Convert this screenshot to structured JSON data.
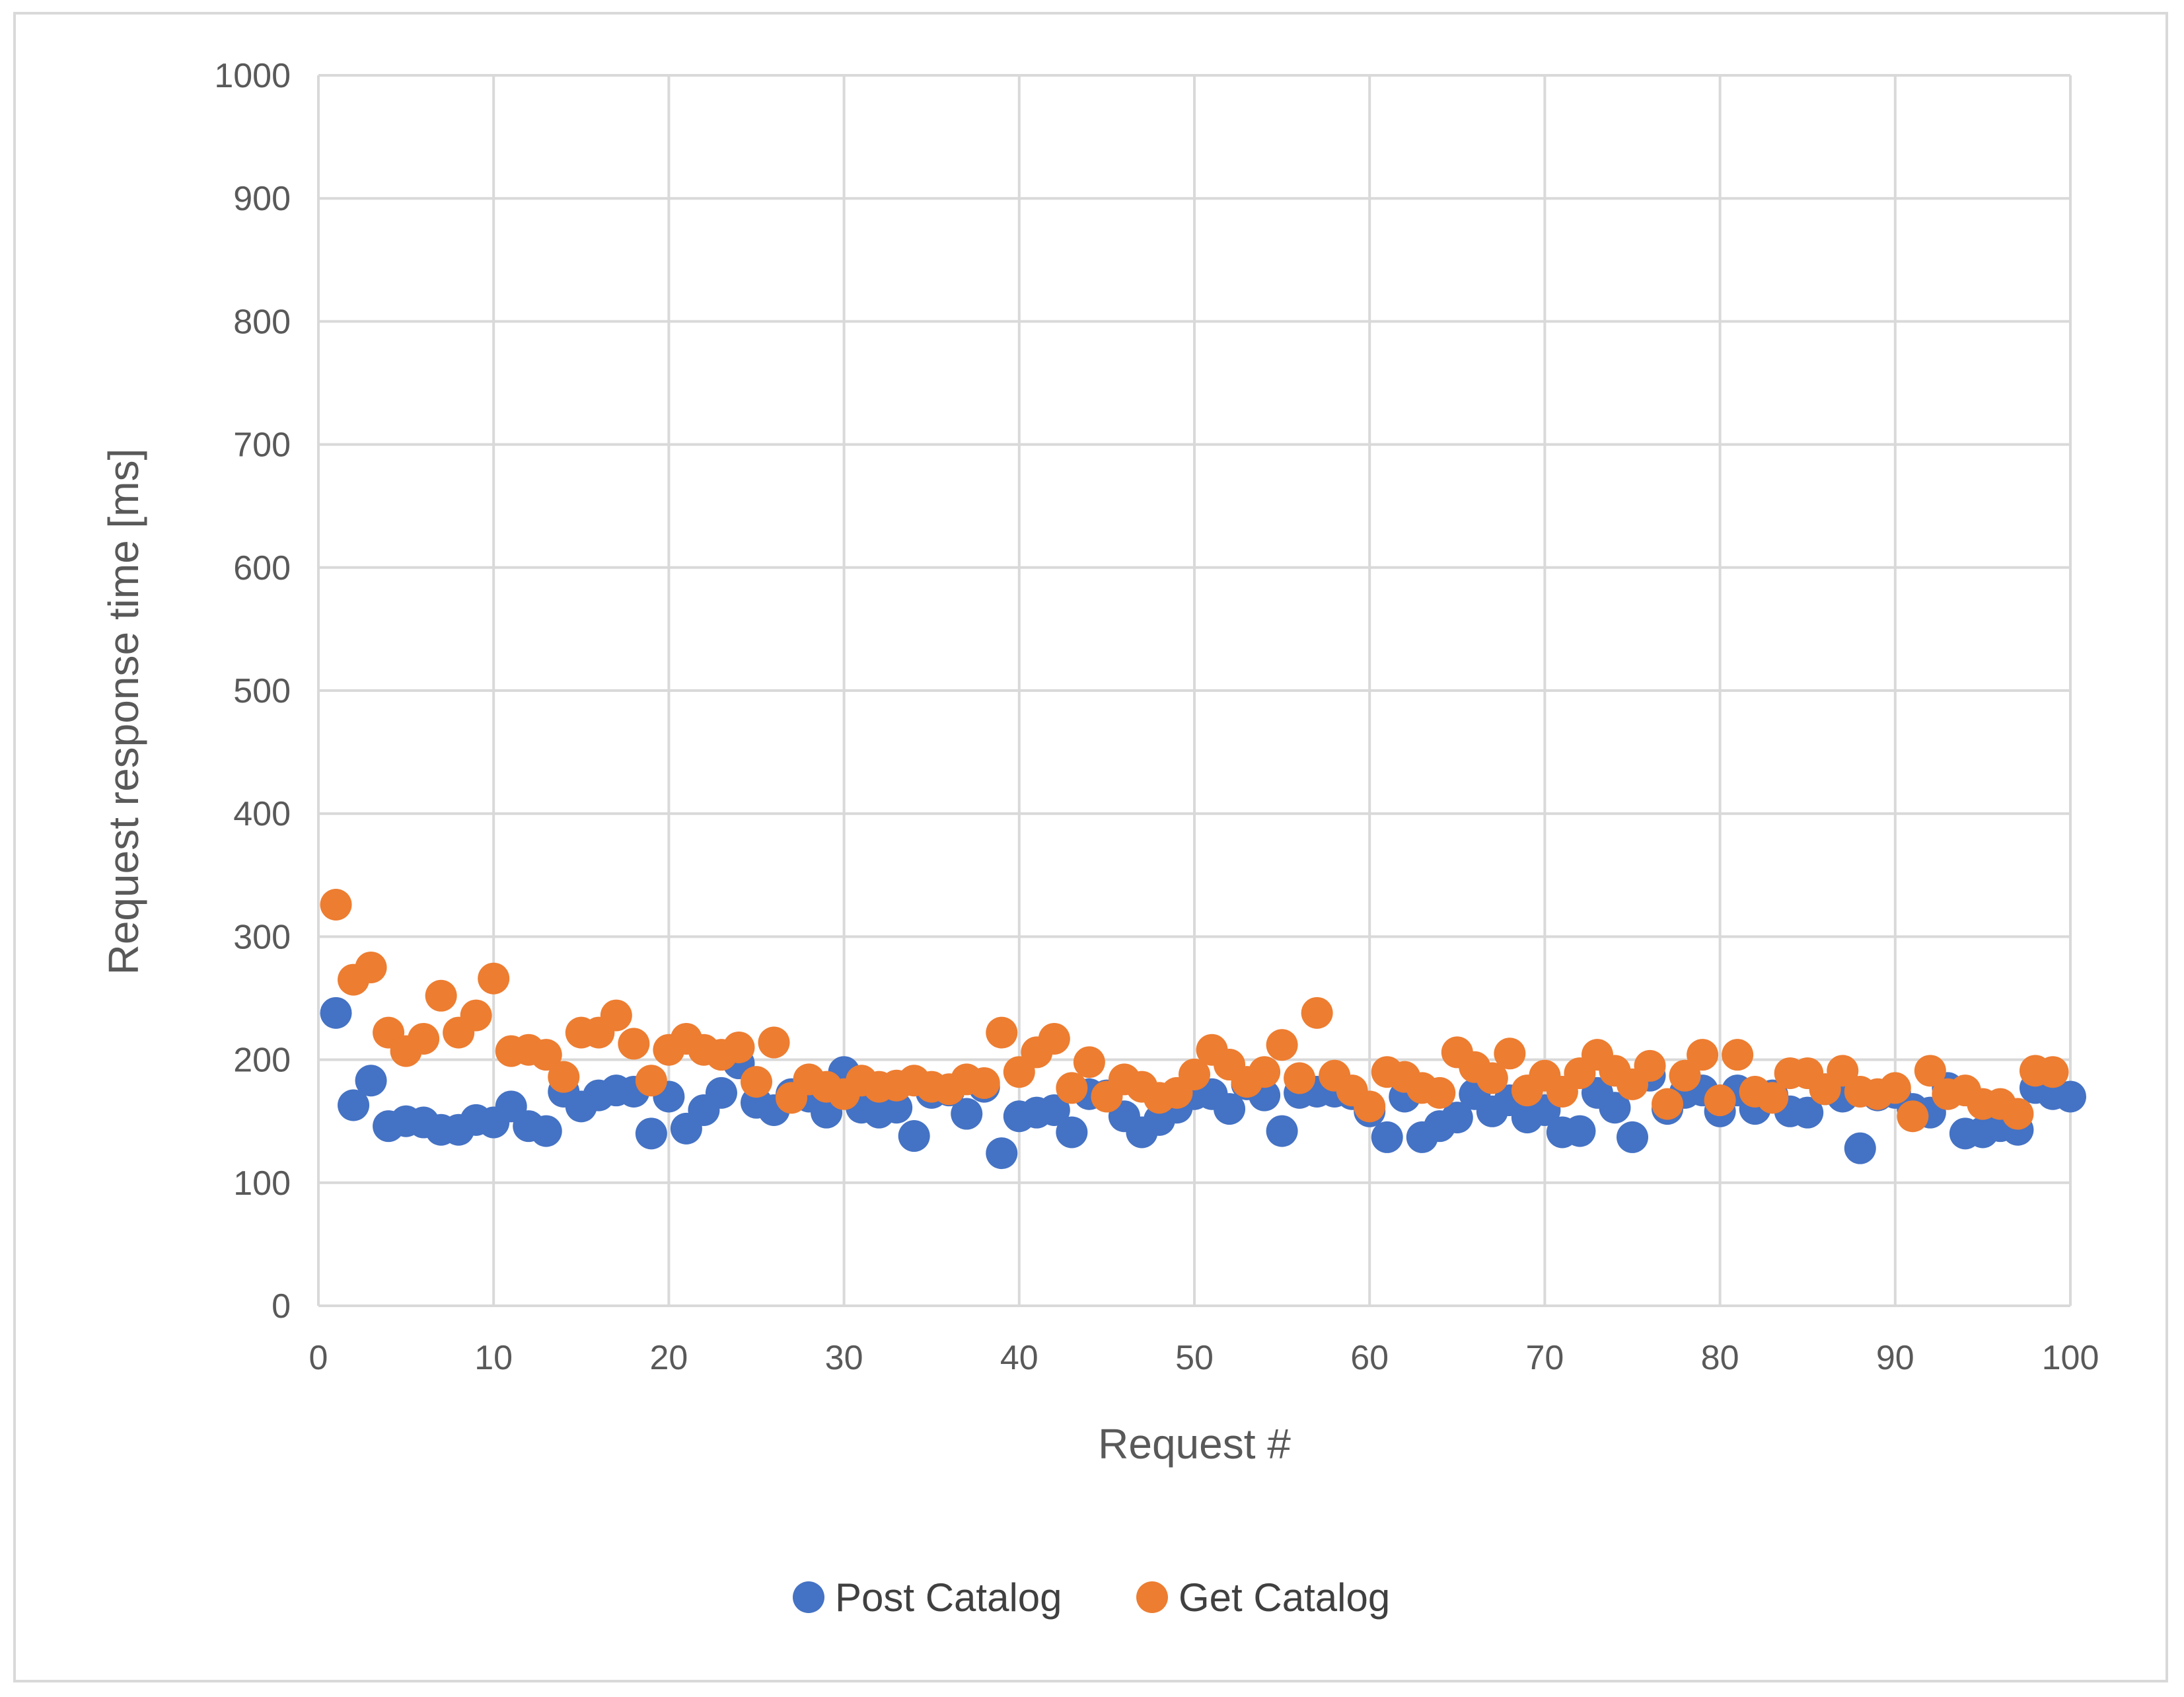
{
  "chart_data": {
    "type": "scatter",
    "title": "",
    "xlabel": "Request #",
    "ylabel": "Request response time [ms]",
    "xlim": [
      0,
      100
    ],
    "ylim": [
      0,
      1000
    ],
    "xticks": [
      0,
      10,
      20,
      30,
      40,
      50,
      60,
      70,
      80,
      90,
      100
    ],
    "yticks": [
      0,
      100,
      200,
      300,
      400,
      500,
      600,
      700,
      800,
      900,
      1000
    ],
    "grid": true,
    "legend_position": "bottom-center",
    "series": [
      {
        "name": "Post Catalog",
        "color": "#4472C4",
        "x": [
          1,
          2,
          3,
          4,
          5,
          6,
          7,
          8,
          9,
          10,
          11,
          12,
          13,
          14,
          15,
          16,
          17,
          18,
          19,
          20,
          21,
          22,
          23,
          24,
          25,
          26,
          27,
          28,
          29,
          30,
          31,
          32,
          33,
          34,
          35,
          36,
          37,
          38,
          39,
          40,
          41,
          42,
          43,
          44,
          45,
          46,
          47,
          48,
          49,
          50,
          51,
          52,
          53,
          54,
          55,
          56,
          57,
          58,
          59,
          60,
          61,
          62,
          63,
          64,
          65,
          66,
          67,
          68,
          69,
          70,
          71,
          72,
          73,
          74,
          75,
          76,
          77,
          78,
          79,
          80,
          81,
          82,
          83,
          84,
          85,
          86,
          87,
          88,
          89,
          90,
          91,
          92,
          93,
          94,
          95,
          96,
          97,
          98,
          99,
          100
        ],
        "y": [
          238,
          163,
          183,
          146,
          150,
          149,
          143,
          143,
          151,
          149,
          162,
          146,
          142,
          174,
          162,
          171,
          175,
          174,
          140,
          170,
          144,
          159,
          173,
          197,
          165,
          159,
          172,
          170,
          157,
          190,
          161,
          157,
          161,
          138,
          173,
          175,
          156,
          178,
          124,
          154,
          157,
          159,
          141,
          172,
          171,
          154,
          141,
          151,
          161,
          172,
          172,
          160,
          180,
          171,
          142,
          173,
          174,
          174,
          172,
          158,
          137,
          170,
          137,
          146,
          153,
          172,
          158,
          167,
          153,
          159,
          141,
          142,
          173,
          161,
          137,
          187,
          160,
          173,
          175,
          158,
          175,
          160,
          171,
          158,
          157,
          176,
          170,
          128,
          171,
          173,
          160,
          157,
          177,
          140,
          141,
          146,
          143,
          177,
          172,
          170
        ]
      },
      {
        "name": "Get Catalog",
        "color": "#ED7D31",
        "x": [
          1,
          2,
          3,
          4,
          5,
          6,
          7,
          8,
          9,
          10,
          11,
          12,
          13,
          14,
          15,
          16,
          17,
          18,
          19,
          20,
          21,
          22,
          23,
          24,
          25,
          26,
          27,
          28,
          29,
          30,
          31,
          32,
          33,
          34,
          35,
          36,
          37,
          38,
          39,
          40,
          41,
          42,
          43,
          44,
          45,
          46,
          47,
          48,
          49,
          50,
          51,
          52,
          53,
          54,
          55,
          56,
          57,
          58,
          59,
          60,
          61,
          62,
          63,
          64,
          65,
          66,
          67,
          68,
          69,
          70,
          71,
          72,
          73,
          74,
          75,
          76,
          77,
          78,
          79,
          80,
          81,
          82,
          83,
          84,
          85,
          86,
          87,
          88,
          89,
          90,
          91,
          92,
          93,
          94,
          95,
          96,
          97,
          98,
          99
        ],
        "y": [
          326,
          265,
          275,
          222,
          207,
          217,
          252,
          222,
          236,
          266,
          207,
          208,
          204,
          186,
          222,
          222,
          236,
          213,
          183,
          208,
          217,
          208,
          204,
          210,
          182,
          214,
          169,
          184,
          178,
          172,
          183,
          178,
          179,
          183,
          178,
          176,
          184,
          181,
          222,
          190,
          206,
          217,
          177,
          198,
          170,
          184,
          178,
          169,
          173,
          188,
          208,
          196,
          182,
          190,
          212,
          185,
          238,
          187,
          175,
          162,
          190,
          186,
          177,
          173,
          206,
          194,
          185,
          205,
          175,
          187,
          174,
          189,
          204,
          191,
          180,
          195,
          164,
          187,
          204,
          167,
          204,
          174,
          169,
          189,
          189,
          176,
          191,
          174,
          172,
          177,
          154,
          191,
          172,
          175,
          164,
          164,
          156,
          191,
          190
        ]
      }
    ]
  },
  "colors": {
    "post": "#4472C4",
    "get": "#ED7D31",
    "grid": "#D9D9D9",
    "text": "#595959"
  }
}
